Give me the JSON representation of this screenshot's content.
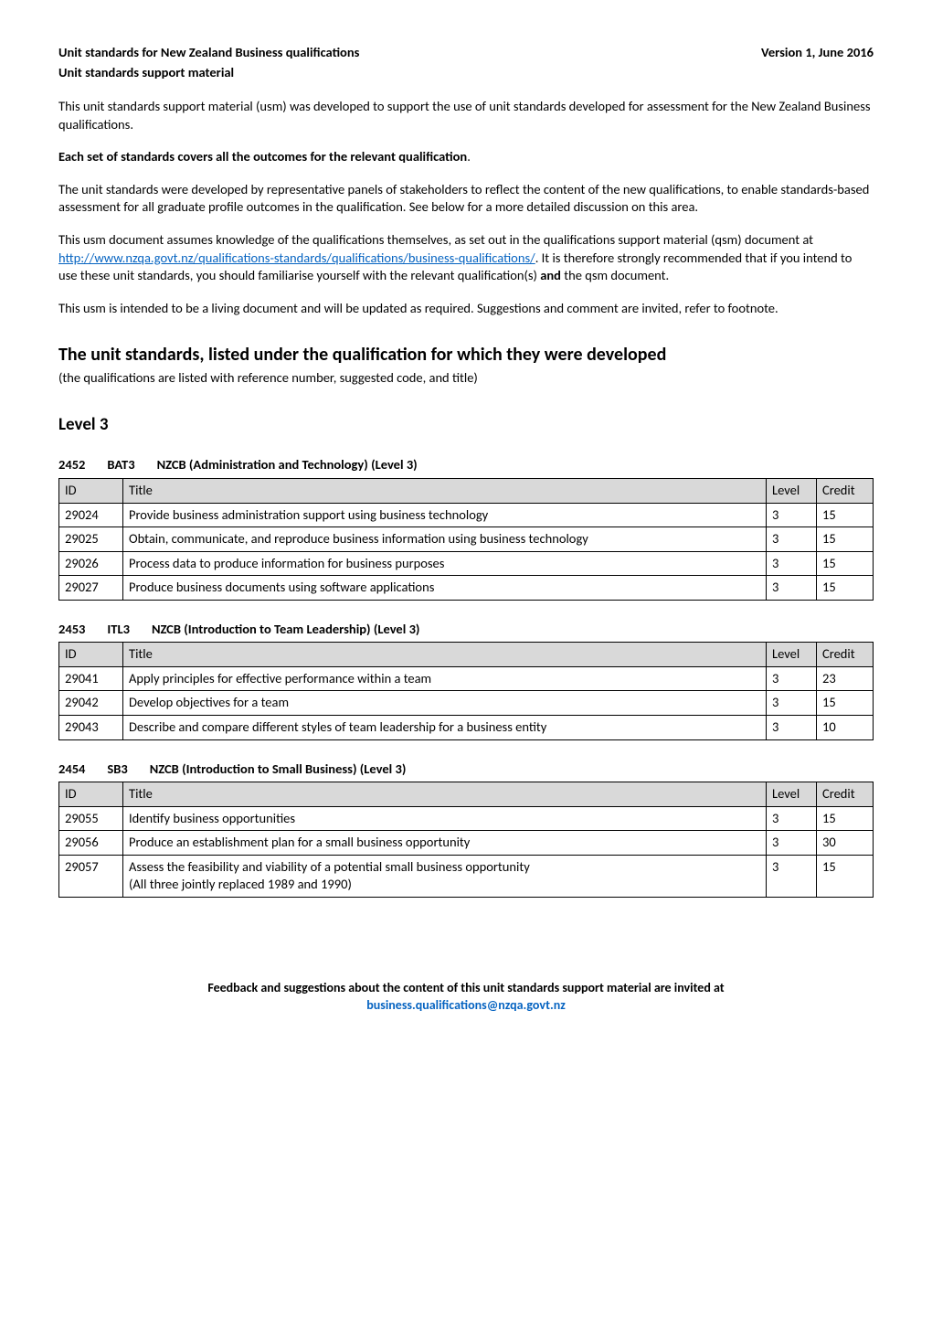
{
  "header": {
    "left_line1": "Unit standards for New Zealand Business qualifications",
    "left_line2": "Unit standards support material",
    "right": "Version 1, June 2016"
  },
  "intro": {
    "p1": "This unit standards support material (usm) was developed to support the use of unit standards developed for assessment for the New Zealand Business qualifications.",
    "bold": "Each set of standards covers all the outcomes for the relevant qualification",
    "bold_suffix": ".",
    "p2": "The unit standards were developed by representative panels of stakeholders to reflect the content of the new qualifications, to enable standards-based assessment for all graduate profile outcomes in the qualification.  See below for a more detailed discussion on this area.",
    "p3_a": "This usm document assumes knowledge of the qualifications themselves, as set out in the qualifications support material (qsm) document at ",
    "p3_link": "http://www.nzqa.govt.nz/qualifications-standards/qualifications/business-qualifications/",
    "p3_b": ".  It is therefore strongly recommended that if you intend to use these unit standards, you should familiarise yourself with the relevant qualification(s) ",
    "p3_bold": "and",
    "p3_c": " the qsm document.",
    "p4": "This usm is intended to be a living document and will be updated as required.  Suggestions and comment are invited, refer to footnote."
  },
  "section": {
    "title": "The unit standards, listed under the qualification for which they were developed",
    "subtitle": "(the qualifications are listed with reference number, suggested code, and title)"
  },
  "level_heading": "Level 3",
  "table_headers": {
    "id": "ID",
    "title": "Title",
    "level": "Level",
    "credit": "Credit"
  },
  "tables": [
    {
      "code_num": "2452",
      "code_abbr": "BAT3",
      "code_title": "NZCB (Administration and Technology) (Level 3)",
      "rows": [
        {
          "id": "29024",
          "title": "Provide business administration support using business technology",
          "level": "3",
          "credit": "15"
        },
        {
          "id": "29025",
          "title": "Obtain, communicate, and reproduce business information using business technology",
          "level": "3",
          "credit": "15"
        },
        {
          "id": "29026",
          "title": "Process data to produce information for business purposes",
          "level": "3",
          "credit": "15"
        },
        {
          "id": "29027",
          "title": "Produce business documents using software applications",
          "level": "3",
          "credit": "15"
        }
      ]
    },
    {
      "code_num": "2453",
      "code_abbr": "ITL3",
      "code_title": "NZCB (Introduction to Team Leadership) (Level 3)",
      "rows": [
        {
          "id": "29041",
          "title": "Apply principles for effective performance within a team",
          "level": "3",
          "credit": "23"
        },
        {
          "id": "29042",
          "title": "Develop objectives for a team",
          "level": "3",
          "credit": "15"
        },
        {
          "id": "29043",
          "title": "Describe and compare different styles of team leadership for a business entity",
          "level": "3",
          "credit": "10"
        }
      ]
    },
    {
      "code_num": "2454",
      "code_abbr": "SB3",
      "code_title": "NZCB (Introduction to Small Business) (Level 3)",
      "rows": [
        {
          "id": "29055",
          "title": "Identify business opportunities",
          "level": "3",
          "credit": "15"
        },
        {
          "id": "29056",
          "title": "Produce an establishment plan for a small business opportunity",
          "level": "3",
          "credit": "30"
        },
        {
          "id": "29057",
          "title": "Assess the feasibility and viability of a potential small business opportunity",
          "level": "3",
          "credit": "15"
        },
        {
          "id": "",
          "title": "(All three jointly replaced 1989 and 1990)",
          "level": "",
          "credit": ""
        }
      ],
      "merge_last_with_prev": true
    }
  ],
  "footer": {
    "line1": "Feedback and suggestions about the content of this unit standards support material are invited at",
    "email": "business.qualifications@nzqa.govt.nz"
  }
}
